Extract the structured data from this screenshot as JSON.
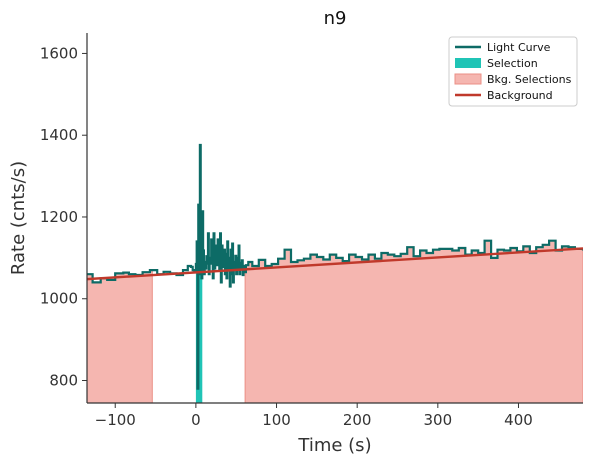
{
  "chart_data": {
    "type": "line",
    "title": "n9",
    "xlabel": "Time (s)",
    "ylabel": "Rate (cnts/s)",
    "xlim": [
      -135,
      480
    ],
    "ylim": [
      745,
      1650
    ],
    "x_ticks": [
      -100,
      0,
      100,
      200,
      300,
      400
    ],
    "x_tick_labels": [
      "−100",
      "0",
      "100",
      "200",
      "300",
      "400"
    ],
    "y_ticks": [
      800,
      1000,
      1200,
      1400,
      1600
    ],
    "y_tick_labels": [
      "800",
      "1000",
      "1200",
      "1400",
      "1600"
    ],
    "grid": false,
    "legend_position": "top-right",
    "colors": {
      "light_curve": "#0d6b66",
      "selection": "#20c4b6",
      "bkg_fill": "#f5b6b0",
      "bkg_edge": "#eb8f86",
      "background": "#c0392b",
      "axes": "#333333"
    },
    "legend": [
      {
        "label": "Light Curve",
        "kind": "line",
        "color": "#0d6b66"
      },
      {
        "label": "Selection",
        "kind": "patch",
        "color": "#20c4b6"
      },
      {
        "label": "Bkg. Selections",
        "kind": "patch",
        "color": "#f5b6b0"
      },
      {
        "label": "Background",
        "kind": "line",
        "color": "#c0392b"
      }
    ],
    "background_line": {
      "x": [
        -135,
        480
      ],
      "y": [
        1048,
        1123
      ]
    },
    "bkg_selections": [
      [
        -135,
        -54
      ],
      [
        61,
        480
      ]
    ],
    "selection": [
      0,
      8
    ],
    "light_curve_x": [
      -135,
      -128,
      -118,
      -110,
      -100,
      -90,
      -83,
      -75,
      -66,
      -57,
      -48,
      -40,
      -32,
      -24,
      -16,
      -10,
      -6,
      -4,
      -2,
      0,
      1,
      2,
      3,
      4,
      5,
      6,
      7,
      8,
      9,
      10,
      11,
      12,
      13,
      14,
      15,
      16,
      17,
      18,
      19,
      20,
      21,
      22,
      23,
      24,
      25,
      26,
      27,
      28,
      29,
      30,
      31,
      32,
      33,
      34,
      35,
      36,
      37,
      38,
      39,
      40,
      41,
      42,
      43,
      44,
      45,
      46,
      47,
      48,
      49,
      50,
      51,
      52,
      53,
      54,
      55,
      56,
      57,
      58,
      59,
      60,
      62,
      65,
      70,
      78,
      86,
      94,
      102,
      110,
      118,
      126,
      134,
      142,
      150,
      158,
      166,
      174,
      182,
      190,
      198,
      206,
      214,
      222,
      230,
      238,
      246,
      254,
      262,
      270,
      278,
      286,
      294,
      302,
      310,
      318,
      326,
      334,
      342,
      350,
      358,
      366,
      374,
      382,
      390,
      398,
      406,
      414,
      422,
      430,
      438,
      446,
      454,
      462,
      470,
      480
    ],
    "light_curve_y": [
      1060,
      1040,
      1050,
      1046,
      1062,
      1064,
      1060,
      1058,
      1065,
      1070,
      1060,
      1066,
      1062,
      1058,
      1070,
      1080,
      1078,
      1070,
      1065,
      1085,
      1140,
      780,
      1230,
      1060,
      1376,
      1090,
      1050,
      1214,
      1118,
      1060,
      1090,
      1074,
      1104,
      1086,
      1160,
      1060,
      1100,
      1086,
      1145,
      1102,
      1050,
      1160,
      1074,
      1130,
      1090,
      1082,
      1145,
      1106,
      1068,
      1160,
      1040,
      1130,
      1092,
      1078,
      1120,
      1060,
      1110,
      1050,
      1140,
      1070,
      1100,
      1030,
      1120,
      1060,
      1135,
      1040,
      1090,
      1075,
      1105,
      1060,
      1100,
      1072,
      1130,
      1060,
      1088,
      1076,
      1094,
      1058,
      1080,
      1065,
      1082,
      1090,
      1080,
      1095,
      1080,
      1085,
      1098,
      1120,
      1090,
      1094,
      1098,
      1108,
      1102,
      1096,
      1108,
      1100,
      1092,
      1108,
      1102,
      1096,
      1108,
      1098,
      1112,
      1108,
      1104,
      1110,
      1126,
      1104,
      1118,
      1112,
      1120,
      1122,
      1122,
      1118,
      1124,
      1108,
      1118,
      1112,
      1142,
      1100,
      1120,
      1118,
      1124,
      1116,
      1128,
      1112,
      1126,
      1132,
      1142,
      1118,
      1128,
      1126,
      1122,
      1118
    ]
  }
}
